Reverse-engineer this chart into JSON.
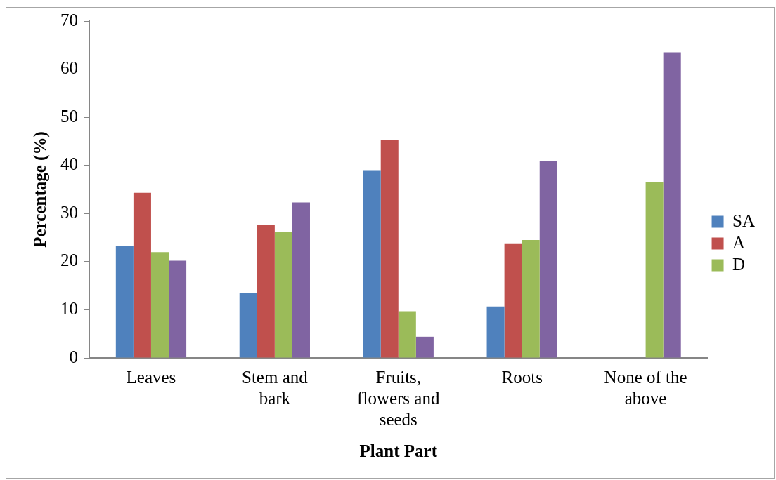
{
  "chart_data": {
    "type": "bar",
    "xlabel": "Plant Part",
    "ylabel": "Percentage (%)",
    "categories": [
      "Leaves",
      "Stem and bark",
      "Fruits, flowers and seeds",
      "Roots",
      "None of the above"
    ],
    "series": [
      {
        "name": "SA",
        "color": "#4f81bd",
        "values": [
          23.2,
          13.5,
          39.0,
          10.7,
          0
        ]
      },
      {
        "name": "A",
        "color": "#c0504d",
        "values": [
          34.3,
          27.7,
          45.3,
          23.8,
          0
        ]
      },
      {
        "name": "D",
        "color": "#9bbb59",
        "values": [
          22.0,
          26.2,
          9.7,
          24.5,
          36.6
        ]
      },
      {
        "color": "#8064a2",
        "values": [
          20.2,
          32.3,
          4.4,
          40.9,
          63.5
        ]
      }
    ],
    "ylim": [
      0,
      70
    ],
    "yticks": [
      0,
      10,
      20,
      30,
      40,
      50,
      60,
      70
    ],
    "grid": false,
    "legend": "right"
  }
}
